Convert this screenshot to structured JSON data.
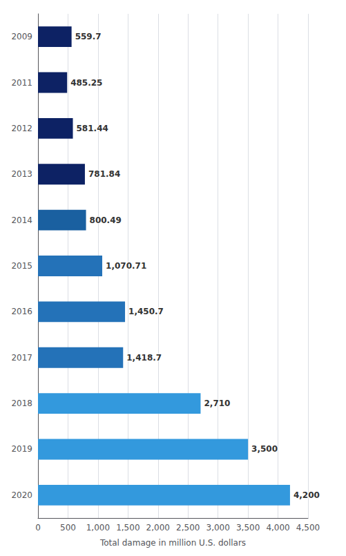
{
  "chart_data": {
    "type": "bar",
    "orientation": "horizontal",
    "categories": [
      "2009",
      "2011",
      "2012",
      "2013",
      "2014",
      "2015",
      "2016",
      "2017",
      "2018",
      "2019",
      "2020"
    ],
    "values": [
      559.7,
      485.25,
      581.44,
      781.84,
      800.49,
      1070.71,
      1450.7,
      1418.7,
      2710,
      3500,
      4200
    ],
    "value_labels": [
      "559.7",
      "485.25",
      "581.44",
      "781.84",
      "800.49",
      "1,070.71",
      "1,450.7",
      "1,418.7",
      "2,710",
      "3,500",
      "4,200"
    ],
    "colors": [
      "#0d2264",
      "#0d2264",
      "#0d2264",
      "#0d2264",
      "#1a60a0",
      "#2472b8",
      "#2472b8",
      "#2472b8",
      "#3399dd",
      "#3399dd",
      "#3399dd"
    ],
    "xlabel": "Total damage in million U.S. dollars",
    "xlim": [
      0,
      4500
    ],
    "xticks": [
      0,
      500,
      {
        "value": 1000,
        "label": "1,000"
      },
      {
        "value": 1500,
        "label": "1,500"
      },
      {
        "value": 2000,
        "label": "2,000"
      },
      {
        "value": 2500,
        "label": "2,500"
      },
      {
        "value": 3000,
        "label": "3,000"
      },
      {
        "value": 3500,
        "label": "3,500"
      },
      {
        "value": 4000,
        "label": "4,000"
      },
      {
        "value": 4500,
        "label": "4,500"
      }
    ],
    "grid": true,
    "data_labels": true
  }
}
